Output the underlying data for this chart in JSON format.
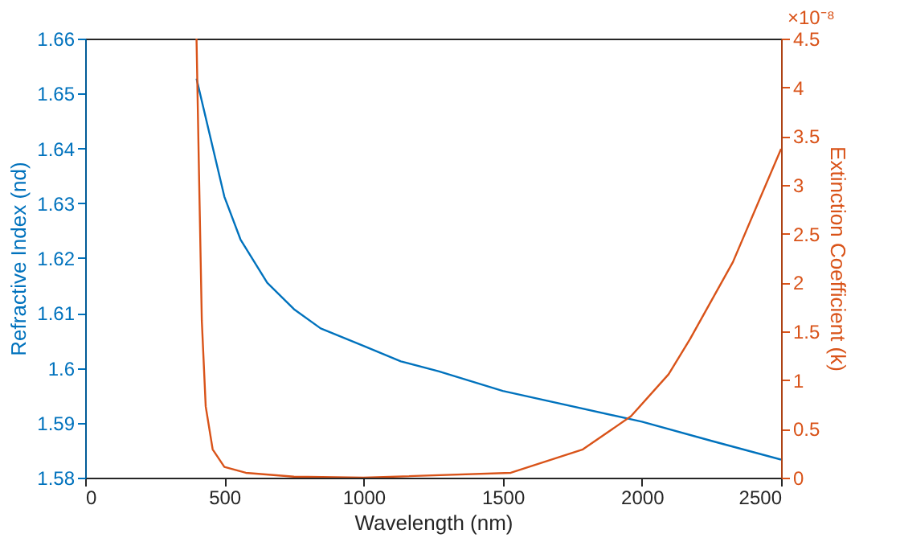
{
  "chart_data": {
    "type": "line",
    "xlabel": "Wavelength (nm)",
    "ylabel": "Refractive Index (nd)",
    "y2label": "Extinction Coefficient (k)",
    "xlim": [
      0,
      2500
    ],
    "xticks": [
      0,
      500,
      1000,
      1500,
      2000,
      2500
    ],
    "ylim": [
      1.58,
      1.66
    ],
    "yticks": [
      1.58,
      1.59,
      1.6,
      1.61,
      1.62,
      1.63,
      1.64,
      1.65,
      1.66
    ],
    "y2lim": [
      0,
      4.5
    ],
    "y2ticks": [
      0,
      0.5,
      1,
      1.5,
      2,
      2.5,
      3,
      3.5,
      4,
      4.5
    ],
    "annotations": [
      "×10⁻⁸"
    ],
    "grid": false,
    "series": [
      {
        "color": "#0072bd",
        "x": [
          400,
          500,
          558,
          654,
          750,
          846,
          1000,
          1134,
          1269,
          1500,
          2000,
          2250,
          2500
        ],
        "values": [
          1.6527,
          1.6312,
          1.6234,
          1.6155,
          1.6107,
          1.6072,
          1.604,
          1.6012,
          1.5994,
          1.5958,
          1.5902,
          1.5867,
          1.5833
        ]
      },
      {
        "color": "#d95319",
        "axis": "y2",
        "x": [
          400,
          408,
          419,
          433,
          458,
          500,
          577,
          750,
          1000,
          1529,
          1788,
          1961,
          2096,
          2173,
          2327,
          2500
        ],
        "values": [
          4.5,
          3.26,
          1.61,
          0.73,
          0.29,
          0.11,
          0.05,
          0.01,
          0.0,
          0.05,
          0.29,
          0.63,
          1.06,
          1.42,
          2.21,
          3.37
        ]
      }
    ]
  }
}
